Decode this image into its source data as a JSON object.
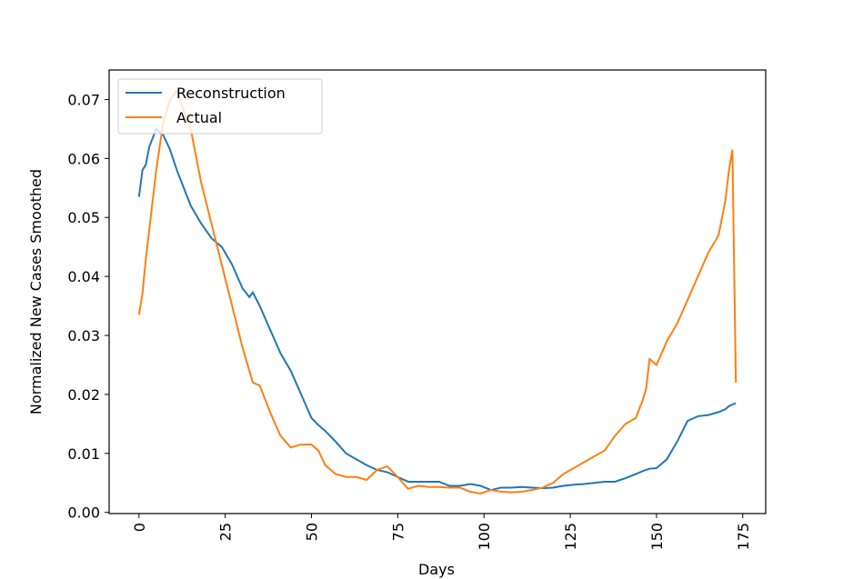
{
  "chart_data": {
    "type": "line",
    "x": [
      0,
      1,
      2,
      3,
      5,
      7,
      9,
      11,
      13,
      15,
      18,
      21,
      24,
      27,
      30,
      32,
      33,
      35,
      38,
      41,
      44,
      47,
      50,
      52,
      54,
      57,
      60,
      63,
      66,
      69,
      72,
      75,
      78,
      81,
      84,
      87,
      90,
      93,
      96,
      99,
      102,
      105,
      108,
      111,
      114,
      117,
      120,
      123,
      126,
      129,
      132,
      135,
      138,
      141,
      144,
      146,
      147,
      148,
      150,
      153,
      156,
      159,
      162,
      165,
      168,
      170,
      171,
      172,
      173
    ],
    "series": [
      {
        "name": "Reconstruction",
        "color": "#1f77b4",
        "values": [
          0.0535,
          0.058,
          0.059,
          0.062,
          0.065,
          0.064,
          0.0615,
          0.058,
          0.055,
          0.052,
          0.049,
          0.0465,
          0.045,
          0.042,
          0.038,
          0.0365,
          0.0373,
          0.035,
          0.031,
          0.027,
          0.024,
          0.02,
          0.016,
          0.0148,
          0.0138,
          0.012,
          0.01,
          0.009,
          0.008,
          0.0072,
          0.0068,
          0.006,
          0.0052,
          0.0052,
          0.0052,
          0.0052,
          0.0045,
          0.0045,
          0.0048,
          0.0045,
          0.0038,
          0.0042,
          0.0042,
          0.0043,
          0.0042,
          0.0041,
          0.0042,
          0.0045,
          0.0047,
          0.0048,
          0.005,
          0.0052,
          0.0052,
          0.0058,
          0.0065,
          0.007,
          0.0072,
          0.0074,
          0.0075,
          0.009,
          0.012,
          0.0155,
          0.0163,
          0.0165,
          0.017,
          0.0175,
          0.018,
          0.0183,
          0.0185
        ]
      },
      {
        "name": "Actual",
        "color": "#ff7f0e",
        "values": [
          0.0335,
          0.037,
          0.043,
          0.048,
          0.058,
          0.066,
          0.07,
          0.0715,
          0.068,
          0.065,
          0.056,
          0.049,
          0.042,
          0.035,
          0.028,
          0.024,
          0.022,
          0.0215,
          0.017,
          0.013,
          0.011,
          0.0115,
          0.0115,
          0.0105,
          0.008,
          0.0065,
          0.006,
          0.006,
          0.0055,
          0.0072,
          0.0078,
          0.006,
          0.004,
          0.0045,
          0.0043,
          0.0043,
          0.0042,
          0.0042,
          0.0035,
          0.0032,
          0.0038,
          0.0035,
          0.0034,
          0.0035,
          0.0038,
          0.0042,
          0.005,
          0.0065,
          0.0075,
          0.0085,
          0.0095,
          0.0105,
          0.013,
          0.015,
          0.016,
          0.019,
          0.021,
          0.026,
          0.025,
          0.029,
          0.032,
          0.036,
          0.04,
          0.044,
          0.047,
          0.053,
          0.058,
          0.0615,
          0.022
        ]
      }
    ],
    "xlabel": "Days",
    "ylabel": "Normalized New Cases Smoothed",
    "xlim": [
      -8.65,
      181.65
    ],
    "xticks": [
      0,
      25,
      50,
      75,
      100,
      125,
      150,
      175
    ],
    "ylim": [
      -0.0002,
      0.075
    ],
    "yticks": [
      {
        "value": 0,
        "label": "0.00"
      },
      0.01,
      0.02,
      0.03,
      0.04,
      0.05,
      0.06,
      0.07
    ],
    "legend": "upper left"
  }
}
